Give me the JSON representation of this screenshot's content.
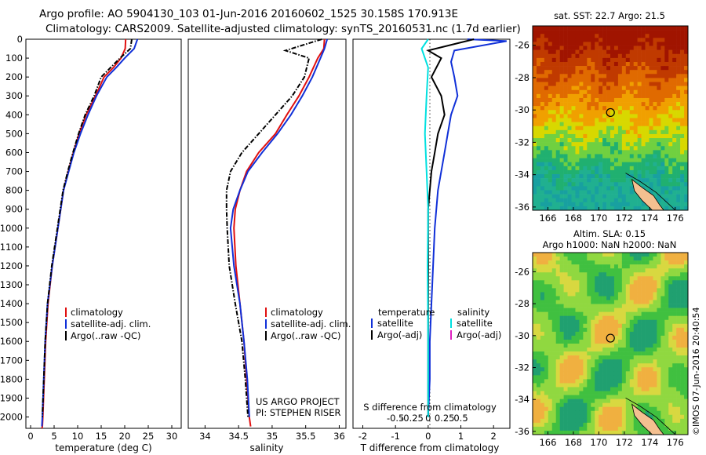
{
  "header": {
    "line1": "Argo profile: AO 5904130_103 01-Jun-2016 20160602_1525 30.158S 170.913E",
    "line2": "Climatology: CARS2009. Satellite-adjusted climatology: synTS_20160531.nc (1.7d earlier)"
  },
  "credits": {
    "project": "US ARGO PROJECT",
    "pi": "PI: STEPHEN RISER",
    "imos": "©IMOS 07-Jun-2016 20:40:54"
  },
  "colors": {
    "climatology": "#e01010",
    "satellite": "#1030d8",
    "argo": "#000000",
    "sal_satellite": "#00e0e0",
    "sal_argo": "#e020c0"
  },
  "depth_axis": {
    "ylim": [
      0,
      2060
    ],
    "ticks": [
      0,
      100,
      200,
      300,
      400,
      500,
      600,
      700,
      800,
      900,
      1000,
      1100,
      1200,
      1300,
      1400,
      1500,
      1600,
      1700,
      1800,
      1900,
      2000
    ]
  },
  "chart_data": [
    {
      "id": "temperature",
      "type": "line",
      "xlabel": "temperature (deg C)",
      "xlim": [
        -1,
        32
      ],
      "xticks": [
        0,
        5,
        10,
        15,
        20,
        25,
        30
      ],
      "legend": [
        "climatology",
        "satellite-adj. clim.",
        "Argo(..raw -QC)"
      ],
      "series": [
        {
          "name": "climatology",
          "color": "#e01010",
          "x": [
            20.2,
            20.1,
            19.2,
            17.6,
            15.6,
            13.8,
            11.8,
            10.3,
            9.1,
            8.0,
            7.0,
            5.8,
            4.6,
            3.7,
            3.2,
            2.9,
            2.6,
            2.5,
            2.4
          ],
          "y": [
            0,
            50,
            100,
            150,
            200,
            300,
            400,
            500,
            600,
            700,
            800,
            1000,
            1200,
            1400,
            1600,
            1800,
            2000,
            2050,
            2060
          ]
        },
        {
          "name": "satellite-adj. clim.",
          "color": "#1030d8",
          "x": [
            22.7,
            22.0,
            20.0,
            18.2,
            16.2,
            14.0,
            12.2,
            10.6,
            9.2,
            8.1,
            7.0,
            5.8,
            4.6,
            3.6,
            3.1,
            2.8,
            2.5,
            2.4
          ],
          "y": [
            0,
            50,
            100,
            150,
            200,
            300,
            400,
            500,
            600,
            700,
            800,
            1000,
            1200,
            1400,
            1600,
            1800,
            2000,
            2050
          ]
        },
        {
          "name": "Argo(..raw -QC)",
          "color": "#000000",
          "x": [
            21.5,
            21.2,
            19.0,
            17.0,
            15.0,
            13.5,
            11.6,
            10.2,
            9.0,
            7.9,
            6.9,
            5.7,
            4.5,
            3.6,
            3.1,
            2.8,
            2.5
          ],
          "y": [
            0,
            50,
            100,
            150,
            200,
            300,
            400,
            500,
            600,
            700,
            800,
            1000,
            1200,
            1400,
            1600,
            1800,
            2000
          ]
        }
      ]
    },
    {
      "id": "salinity",
      "type": "line",
      "xlabel": "salinity",
      "xlim": [
        33.75,
        36.1
      ],
      "xticks": [
        34,
        34.5,
        35,
        35.5,
        36
      ],
      "legend": [
        "climatology",
        "satellite-adj. clim.",
        "Argo(..raw -QC)"
      ],
      "series": [
        {
          "name": "climatology",
          "color": "#e01010",
          "x": [
            35.78,
            35.77,
            35.68,
            35.55,
            35.4,
            35.22,
            35.05,
            34.8,
            34.62,
            34.52,
            34.45,
            34.43,
            34.46,
            34.52,
            34.58,
            34.62,
            34.66,
            34.68
          ],
          "y": [
            0,
            50,
            100,
            200,
            300,
            400,
            500,
            600,
            700,
            800,
            900,
            1000,
            1200,
            1400,
            1600,
            1800,
            2000,
            2050
          ]
        },
        {
          "name": "satellite-adj. clim.",
          "color": "#1030d8",
          "x": [
            35.82,
            35.78,
            35.72,
            35.6,
            35.45,
            35.28,
            35.08,
            34.85,
            34.64,
            34.52,
            34.42,
            34.38,
            34.43,
            34.52,
            34.58,
            34.63,
            34.66
          ],
          "y": [
            0,
            50,
            100,
            200,
            300,
            400,
            500,
            600,
            700,
            800,
            900,
            1000,
            1200,
            1400,
            1600,
            1800,
            2000
          ]
        },
        {
          "name": "Argo(..raw -QC)",
          "color": "#000000",
          "x": [
            35.74,
            35.2,
            35.55,
            35.48,
            35.3,
            35.05,
            34.8,
            34.55,
            34.38,
            34.32,
            34.32,
            34.33,
            34.36,
            34.45,
            34.55,
            34.6,
            34.64
          ],
          "y": [
            0,
            60,
            100,
            200,
            300,
            400,
            500,
            600,
            700,
            800,
            900,
            1000,
            1200,
            1400,
            1600,
            1800,
            2000
          ]
        }
      ]
    },
    {
      "id": "difference",
      "type": "line",
      "xlabel": "T difference from climatology",
      "x2label": "S difference from climatology",
      "xlim": [
        -2.3,
        2.5
      ],
      "xticks": [
        -2,
        -1,
        0,
        1,
        2
      ],
      "x2ticks": [
        "-0.5",
        "-0.25",
        "0",
        "0.25",
        "0.5"
      ],
      "legend_titles": [
        "temperature",
        "salinity"
      ],
      "legend": [
        "satellite",
        "Argo(-adj)",
        "satellite",
        "Argo(-adj)"
      ],
      "series": [
        {
          "name": "temperature satellite",
          "color": "#1030d8",
          "x": [
            1.2,
            2.4,
            0.8,
            0.7,
            0.8,
            0.9,
            0.7,
            0.6,
            0.5,
            0.4,
            0.3,
            0.2,
            0.15,
            0.1,
            0.05,
            0.05,
            0.0
          ],
          "y": [
            0,
            10,
            60,
            120,
            200,
            300,
            400,
            500,
            600,
            700,
            800,
            1000,
            1200,
            1400,
            1600,
            1800,
            2000
          ]
        },
        {
          "name": "temperature Argo(-adj)",
          "color": "#000000",
          "x": [
            1.4,
            0.0,
            0.4,
            0.1,
            0.4,
            0.5,
            0.3,
            0.2,
            0.1,
            0.05,
            0.0,
            0.0,
            0.0,
            0.0,
            0.0,
            0.0
          ],
          "y": [
            0,
            60,
            100,
            200,
            300,
            400,
            500,
            600,
            700,
            800,
            900,
            1200,
            1400,
            1600,
            1800,
            2000
          ]
        },
        {
          "name": "salinity satellite",
          "color": "#00e0e0",
          "x": [
            0.0,
            -0.2,
            0.0,
            -0.05,
            -0.1,
            -0.05,
            0.0,
            -0.02,
            0.0,
            0.0
          ],
          "y": [
            0,
            50,
            150,
            300,
            500,
            700,
            900,
            1200,
            1600,
            2000
          ]
        }
      ]
    },
    {
      "id": "sst_map",
      "type": "heatmap",
      "title": "sat. SST: 22.7  Argo: 21.5",
      "xticks": [
        166,
        168,
        170,
        172,
        174,
        176
      ],
      "yticks": [
        -26,
        -28,
        -30,
        -32,
        -34,
        -36
      ],
      "xlim": [
        164.8,
        177.0
      ],
      "ylim": [
        -36.2,
        -24.8
      ],
      "marker": {
        "lon": 170.913,
        "lat": -30.158
      }
    },
    {
      "id": "sla_map",
      "type": "heatmap",
      "title": "Altim. SLA: 0.15",
      "subtitle": "Argo h1000: NaN h2000: NaN",
      "xticks": [
        166,
        168,
        170,
        172,
        174,
        176
      ],
      "yticks": [
        -26,
        -28,
        -30,
        -32,
        -34,
        -36
      ],
      "xlim": [
        164.8,
        177.0
      ],
      "ylim": [
        -36.2,
        -24.8
      ],
      "marker": {
        "lon": 170.913,
        "lat": -30.158
      }
    }
  ]
}
